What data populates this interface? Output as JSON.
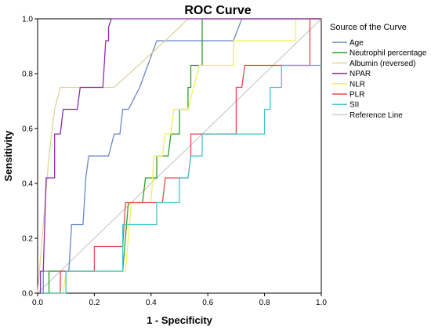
{
  "chart_data": {
    "type": "line",
    "title": "ROC Curve",
    "xlabel": "1 - Specificity",
    "ylabel": "Sensitivity",
    "xlim": [
      0,
      1
    ],
    "ylim": [
      0,
      1
    ],
    "xticks": [
      "0.0",
      "0.2",
      "0.4",
      "0.6",
      "0.8",
      "1.0"
    ],
    "yticks": [
      "0.0",
      "0.2",
      "0.4",
      "0.6",
      "0.8",
      "1.0"
    ],
    "grid": false,
    "legend": {
      "title": "Source of the Curve",
      "placement": "right"
    },
    "series": [
      {
        "name": "Age",
        "color": "#6b86c8",
        "points": [
          [
            0,
            0
          ],
          [
            0.02,
            0
          ],
          [
            0.02,
            0.08
          ],
          [
            0.11,
            0.08
          ],
          [
            0.12,
            0.25
          ],
          [
            0.16,
            0.25
          ],
          [
            0.17,
            0.42
          ],
          [
            0.18,
            0.5
          ],
          [
            0.25,
            0.5
          ],
          [
            0.27,
            0.58
          ],
          [
            0.29,
            0.58
          ],
          [
            0.3,
            0.67
          ],
          [
            0.32,
            0.67
          ],
          [
            0.36,
            0.75
          ],
          [
            0.42,
            0.92
          ],
          [
            0.69,
            0.92
          ],
          [
            0.72,
            1
          ],
          [
            1,
            1
          ]
        ]
      },
      {
        "name": "Neutrophil percentage",
        "color": "#2ca02c",
        "points": [
          [
            0,
            0
          ],
          [
            0.04,
            0
          ],
          [
            0.04,
            0.08
          ],
          [
            0.3,
            0.08
          ],
          [
            0.32,
            0.33
          ],
          [
            0.37,
            0.33
          ],
          [
            0.38,
            0.42
          ],
          [
            0.42,
            0.42
          ],
          [
            0.42,
            0.5
          ],
          [
            0.46,
            0.5
          ],
          [
            0.47,
            0.58
          ],
          [
            0.5,
            0.58
          ],
          [
            0.5,
            0.67
          ],
          [
            0.53,
            0.67
          ],
          [
            0.53,
            0.75
          ],
          [
            0.54,
            0.75
          ],
          [
            0.54,
            0.83
          ],
          [
            0.58,
            0.83
          ],
          [
            0.58,
            1
          ],
          [
            1,
            1
          ]
        ]
      },
      {
        "name": "Albumin (reversed)",
        "color": "#ded59b",
        "points": [
          [
            0,
            0
          ],
          [
            0.02,
            0.25
          ],
          [
            0.04,
            0.5
          ],
          [
            0.06,
            0.67
          ],
          [
            0.08,
            0.75
          ],
          [
            0.27,
            0.75
          ],
          [
            0.45,
            0.92
          ],
          [
            0.53,
            1
          ],
          [
            1,
            1
          ]
        ]
      },
      {
        "name": "NPAR",
        "color": "#8e2cb0",
        "points": [
          [
            0,
            0
          ],
          [
            0.01,
            0
          ],
          [
            0.01,
            0.08
          ],
          [
            0.02,
            0.08
          ],
          [
            0.03,
            0.42
          ],
          [
            0.06,
            0.42
          ],
          [
            0.06,
            0.58
          ],
          [
            0.08,
            0.58
          ],
          [
            0.09,
            0.67
          ],
          [
            0.14,
            0.67
          ],
          [
            0.15,
            0.75
          ],
          [
            0.23,
            0.75
          ],
          [
            0.24,
            0.92
          ],
          [
            0.25,
            0.92
          ],
          [
            0.25,
            0.97
          ],
          [
            0.26,
            1
          ],
          [
            1,
            1
          ]
        ]
      },
      {
        "name": "NLR",
        "color": "#eef253",
        "points": [
          [
            0,
            0
          ],
          [
            0.09,
            0
          ],
          [
            0.1,
            0.08
          ],
          [
            0.31,
            0.08
          ],
          [
            0.33,
            0.33
          ],
          [
            0.4,
            0.33
          ],
          [
            0.41,
            0.5
          ],
          [
            0.44,
            0.5
          ],
          [
            0.45,
            0.58
          ],
          [
            0.47,
            0.58
          ],
          [
            0.48,
            0.67
          ],
          [
            0.53,
            0.67
          ],
          [
            0.57,
            0.83
          ],
          [
            0.69,
            0.83
          ],
          [
            0.69,
            0.92
          ],
          [
            0.91,
            0.92
          ],
          [
            0.91,
            1
          ],
          [
            1,
            1
          ]
        ]
      },
      {
        "name": "PLR",
        "color": "#e84a4a",
        "points": [
          [
            0,
            0
          ],
          [
            0.08,
            0
          ],
          [
            0.08,
            0.08
          ],
          [
            0.2,
            0.08
          ],
          [
            0.2,
            0.17
          ],
          [
            0.3,
            0.17
          ],
          [
            0.31,
            0.33
          ],
          [
            0.44,
            0.33
          ],
          [
            0.45,
            0.42
          ],
          [
            0.53,
            0.42
          ],
          [
            0.54,
            0.5
          ],
          [
            0.54,
            0.58
          ],
          [
            0.7,
            0.58
          ],
          [
            0.7,
            0.75
          ],
          [
            0.72,
            0.75
          ],
          [
            0.73,
            0.83
          ],
          [
            0.96,
            0.83
          ],
          [
            0.96,
            1
          ],
          [
            1,
            1
          ]
        ]
      },
      {
        "name": "SII",
        "color": "#46c6cc",
        "points": [
          [
            0,
            0
          ],
          [
            0.1,
            0
          ],
          [
            0.1,
            0.08
          ],
          [
            0.3,
            0.08
          ],
          [
            0.3,
            0.25
          ],
          [
            0.42,
            0.25
          ],
          [
            0.42,
            0.33
          ],
          [
            0.5,
            0.33
          ],
          [
            0.5,
            0.42
          ],
          [
            0.53,
            0.42
          ],
          [
            0.54,
            0.5
          ],
          [
            0.58,
            0.5
          ],
          [
            0.58,
            0.58
          ],
          [
            0.8,
            0.58
          ],
          [
            0.8,
            0.67
          ],
          [
            0.82,
            0.67
          ],
          [
            0.82,
            0.75
          ],
          [
            0.86,
            0.75
          ],
          [
            0.86,
            0.83
          ],
          [
            1,
            0.83
          ]
        ]
      },
      {
        "name": "Reference Line",
        "color": "#cfcfcf",
        "points": [
          [
            0,
            0
          ],
          [
            1,
            1
          ]
        ]
      }
    ]
  }
}
